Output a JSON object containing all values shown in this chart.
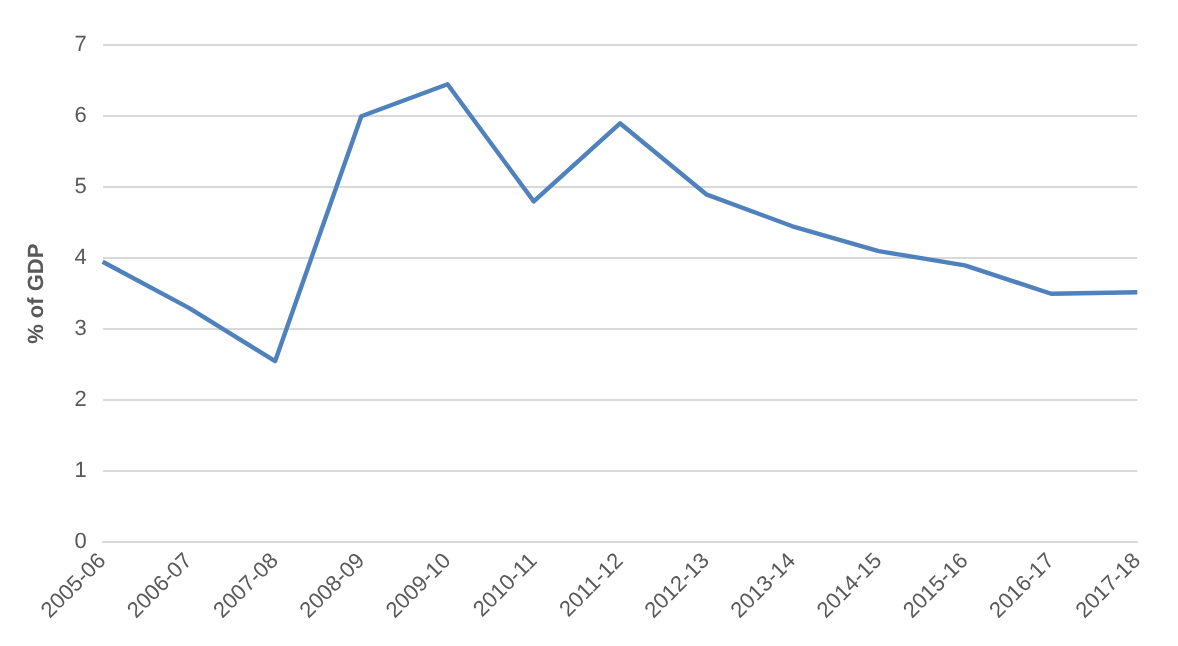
{
  "chart_data": {
    "type": "line",
    "ylabel": "% of GDP",
    "categories": [
      "2005-06",
      "2006-07",
      "2007-08",
      "2008-09",
      "2009-10",
      "2010-11",
      "2011-12",
      "2012-13",
      "2013-14",
      "2014-15",
      "2015-16",
      "2016-17",
      "2017-18"
    ],
    "series": [
      {
        "color": "#4f81bd",
        "values": [
          3.95,
          3.3,
          2.55,
          6.0,
          6.45,
          4.8,
          5.9,
          4.9,
          4.45,
          4.1,
          3.9,
          3.5,
          3.52
        ]
      }
    ],
    "ylim": [
      0,
      7
    ],
    "yticks": [
      0,
      1,
      2,
      3,
      4,
      5,
      6,
      7
    ],
    "grid": "y",
    "legend": false,
    "marker": "none",
    "line_style": "solid"
  }
}
